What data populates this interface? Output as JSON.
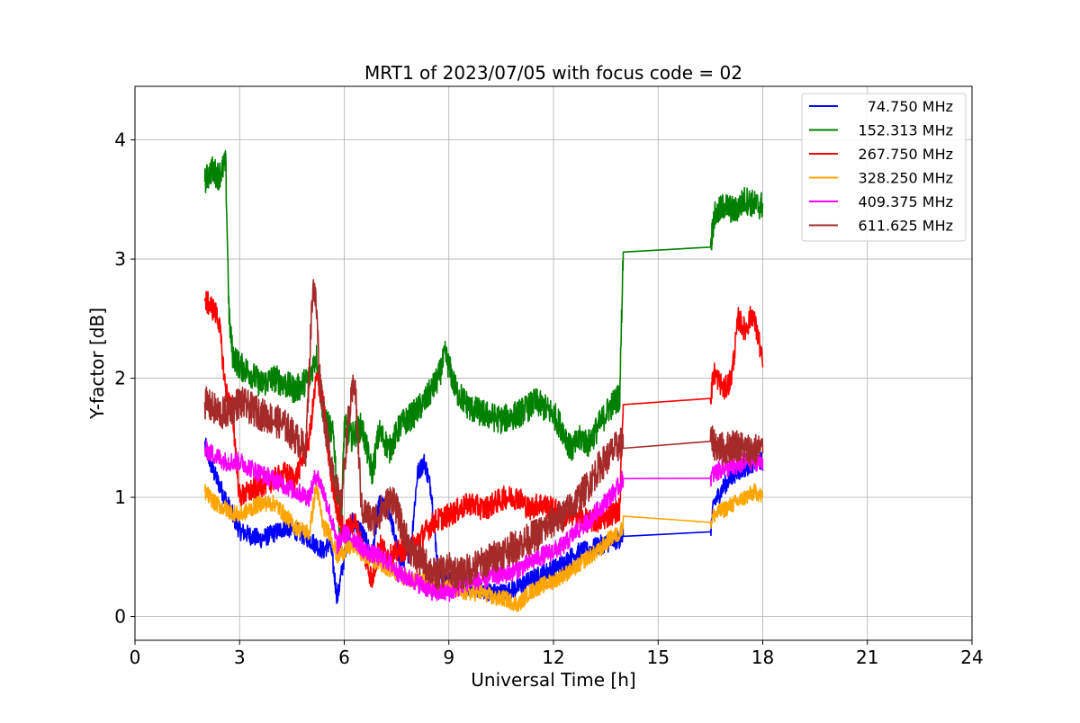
{
  "chart_data": {
    "type": "line",
    "title": "MRT1 of 2023/07/05 with focus code = 02",
    "xlabel": "Universal Time [h]",
    "ylabel": "Y-factor [dB]",
    "xlim": [
      0,
      24
    ],
    "ylim": [
      -0.2,
      4.45
    ],
    "x_ticks": [
      0,
      3,
      6,
      9,
      12,
      15,
      18,
      21,
      24
    ],
    "y_ticks": [
      0,
      1,
      2,
      3,
      4
    ],
    "grid": true,
    "legend_position": "top-right",
    "series": [
      {
        "name": "74.750 MHz",
        "color": "#0000ff",
        "x": [
          2.0,
          2.2,
          2.5,
          2.8,
          3.0,
          3.3,
          3.6,
          4.0,
          4.3,
          4.6,
          5.0,
          5.2,
          5.4,
          5.6,
          5.8,
          6.0,
          6.2,
          6.5,
          6.8,
          7.0,
          7.3,
          7.6,
          7.9,
          8.1,
          8.3,
          8.5,
          8.7,
          9.0,
          9.3,
          9.6,
          10.0,
          10.3,
          10.6,
          11.0,
          11.3,
          11.6,
          12.0,
          12.3,
          12.5,
          12.8,
          13.0,
          13.3,
          13.6,
          13.9,
          14.0,
          16.5,
          16.6,
          16.9,
          17.2,
          17.5,
          17.8,
          18.0
        ],
        "y": [
          1.45,
          1.25,
          1.05,
          0.85,
          0.72,
          0.68,
          0.65,
          0.7,
          0.75,
          0.72,
          0.65,
          0.6,
          0.55,
          0.62,
          0.15,
          0.5,
          0.8,
          0.72,
          0.5,
          0.95,
          0.88,
          0.45,
          0.55,
          1.2,
          1.3,
          1.05,
          0.35,
          0.3,
          0.28,
          0.25,
          0.22,
          0.2,
          0.2,
          0.25,
          0.3,
          0.35,
          0.4,
          0.45,
          0.5,
          0.55,
          0.55,
          0.6,
          0.62,
          0.65,
          0.7,
          0.71,
          0.95,
          1.1,
          1.2,
          1.25,
          1.3,
          1.3
        ],
        "noise": 0.08
      },
      {
        "name": "152.313 MHz",
        "color": "#008000",
        "x": [
          2.0,
          2.2,
          2.4,
          2.6,
          2.7,
          2.8,
          3.0,
          3.3,
          3.6,
          4.0,
          4.3,
          4.6,
          5.0,
          5.2,
          5.4,
          5.7,
          5.9,
          6.0,
          6.2,
          6.5,
          6.8,
          7.0,
          7.3,
          7.6,
          8.0,
          8.3,
          8.7,
          8.9,
          9.2,
          9.6,
          10.0,
          10.5,
          11.0,
          11.5,
          12.0,
          12.3,
          12.5,
          12.8,
          13.0,
          13.3,
          13.6,
          13.9,
          14.0,
          16.5,
          16.6,
          16.9,
          17.2,
          17.5,
          17.8,
          18.0
        ],
        "y": [
          3.65,
          3.75,
          3.7,
          3.8,
          2.5,
          2.2,
          2.1,
          2.05,
          1.95,
          2.0,
          1.95,
          1.9,
          2.0,
          2.2,
          1.7,
          1.5,
          0.6,
          1.6,
          1.5,
          1.6,
          1.2,
          1.55,
          1.4,
          1.6,
          1.7,
          1.8,
          2.0,
          2.2,
          1.9,
          1.75,
          1.7,
          1.65,
          1.7,
          1.8,
          1.7,
          1.55,
          1.4,
          1.5,
          1.45,
          1.6,
          1.75,
          1.85,
          3.1,
          3.1,
          3.35,
          3.45,
          3.4,
          3.5,
          3.45,
          3.45
        ],
        "noise": 0.12
      },
      {
        "name": "267.750 MHz",
        "color": "#ff0000",
        "x": [
          2.0,
          2.2,
          2.4,
          2.6,
          2.8,
          3.0,
          3.3,
          3.6,
          4.0,
          4.3,
          4.6,
          5.0,
          5.2,
          5.4,
          5.6,
          5.8,
          6.0,
          6.3,
          6.6,
          6.8,
          7.0,
          7.3,
          7.6,
          8.0,
          8.3,
          8.6,
          9.0,
          9.3,
          9.6,
          10.0,
          10.3,
          10.6,
          11.0,
          11.3,
          11.6,
          12.0,
          12.3,
          12.6,
          13.0,
          13.3,
          13.6,
          13.9,
          14.0,
          16.5,
          16.6,
          16.9,
          17.1,
          17.3,
          17.5,
          17.7,
          17.9,
          18.0
        ],
        "y": [
          2.65,
          2.6,
          2.5,
          1.9,
          1.7,
          1.0,
          1.05,
          1.1,
          1.15,
          1.2,
          1.15,
          1.5,
          2.0,
          1.8,
          1.2,
          0.9,
          0.7,
          0.8,
          0.5,
          0.3,
          0.6,
          0.5,
          0.55,
          0.6,
          0.7,
          0.8,
          0.85,
          0.9,
          0.95,
          0.9,
          0.95,
          1.0,
          1.0,
          0.9,
          0.95,
          0.9,
          0.85,
          0.85,
          0.8,
          0.8,
          0.85,
          0.9,
          1.82,
          1.83,
          2.05,
          1.9,
          2.0,
          2.5,
          2.4,
          2.55,
          2.3,
          2.1
        ],
        "noise": 0.1
      },
      {
        "name": "328.250 MHz",
        "color": "#ffa500",
        "x": [
          2.0,
          2.3,
          2.6,
          3.0,
          3.3,
          3.6,
          4.0,
          4.3,
          4.6,
          5.0,
          5.2,
          5.4,
          5.6,
          5.8,
          6.0,
          6.3,
          6.6,
          7.0,
          7.3,
          7.6,
          8.0,
          8.3,
          8.6,
          9.0,
          9.3,
          9.6,
          10.0,
          10.3,
          10.6,
          11.0,
          11.3,
          11.6,
          12.0,
          12.3,
          12.6,
          13.0,
          13.3,
          13.6,
          13.9,
          14.0,
          16.5,
          16.6,
          16.9,
          17.2,
          17.5,
          17.8,
          18.0
        ],
        "y": [
          1.05,
          0.95,
          0.9,
          0.85,
          0.9,
          0.95,
          0.95,
          0.85,
          0.75,
          0.7,
          1.1,
          0.75,
          0.7,
          0.5,
          0.55,
          0.6,
          0.5,
          0.45,
          0.4,
          0.35,
          0.3,
          0.3,
          0.25,
          0.25,
          0.2,
          0.2,
          0.2,
          0.15,
          0.15,
          0.1,
          0.2,
          0.25,
          0.3,
          0.35,
          0.4,
          0.5,
          0.55,
          0.65,
          0.7,
          0.78,
          0.79,
          0.85,
          0.9,
          0.95,
          1.0,
          1.05,
          1.0
        ],
        "noise": 0.07
      },
      {
        "name": "409.375 MHz",
        "color": "#ff00ff",
        "x": [
          2.0,
          2.3,
          2.6,
          3.0,
          3.3,
          3.6,
          4.0,
          4.3,
          4.6,
          5.0,
          5.2,
          5.4,
          5.6,
          5.8,
          6.0,
          6.3,
          6.6,
          7.0,
          7.3,
          7.6,
          8.0,
          8.3,
          8.6,
          9.0,
          9.3,
          9.6,
          10.0,
          10.3,
          10.6,
          11.0,
          11.3,
          11.6,
          12.0,
          12.3,
          12.6,
          13.0,
          13.3,
          13.6,
          13.9,
          14.0,
          16.5,
          16.6,
          16.9,
          17.2,
          17.5,
          17.8,
          18.0
        ],
        "y": [
          1.4,
          1.35,
          1.3,
          1.3,
          1.25,
          1.2,
          1.15,
          1.1,
          1.05,
          1.0,
          1.2,
          1.05,
          0.85,
          0.6,
          0.7,
          0.65,
          0.55,
          0.5,
          0.45,
          0.35,
          0.3,
          0.25,
          0.2,
          0.2,
          0.25,
          0.3,
          0.3,
          0.35,
          0.35,
          0.4,
          0.45,
          0.5,
          0.55,
          0.6,
          0.7,
          0.8,
          0.9,
          1.0,
          1.1,
          1.17,
          1.16,
          1.2,
          1.25,
          1.25,
          1.3,
          1.3,
          1.3
        ],
        "noise": 0.08
      },
      {
        "name": "611.625 MHz",
        "color": "#a52a2a",
        "x": [
          2.0,
          2.2,
          2.5,
          2.8,
          3.0,
          3.3,
          3.6,
          4.0,
          4.3,
          4.6,
          4.9,
          5.1,
          5.2,
          5.3,
          5.5,
          5.7,
          5.9,
          6.1,
          6.3,
          6.5,
          6.8,
          7.1,
          7.4,
          7.7,
          8.0,
          8.3,
          8.6,
          9.0,
          9.3,
          9.6,
          10.0,
          10.3,
          10.6,
          11.0,
          11.3,
          11.6,
          12.0,
          12.3,
          12.6,
          13.0,
          13.3,
          13.6,
          13.9,
          14.0,
          16.5,
          16.6,
          16.9,
          17.2,
          17.5,
          17.8,
          18.0
        ],
        "y": [
          1.8,
          1.75,
          1.7,
          1.75,
          1.8,
          1.75,
          1.7,
          1.65,
          1.6,
          1.5,
          1.4,
          2.8,
          2.6,
          2.0,
          1.5,
          1.2,
          0.9,
          1.6,
          2.0,
          0.9,
          0.8,
          0.9,
          1.0,
          0.7,
          0.5,
          0.45,
          0.35,
          0.4,
          0.35,
          0.4,
          0.45,
          0.5,
          0.55,
          0.6,
          0.65,
          0.7,
          0.8,
          0.85,
          0.95,
          1.1,
          1.25,
          1.35,
          1.45,
          1.47,
          1.47,
          1.45,
          1.4,
          1.45,
          1.4,
          1.4,
          1.4
        ],
        "noise": 0.14
      }
    ]
  }
}
